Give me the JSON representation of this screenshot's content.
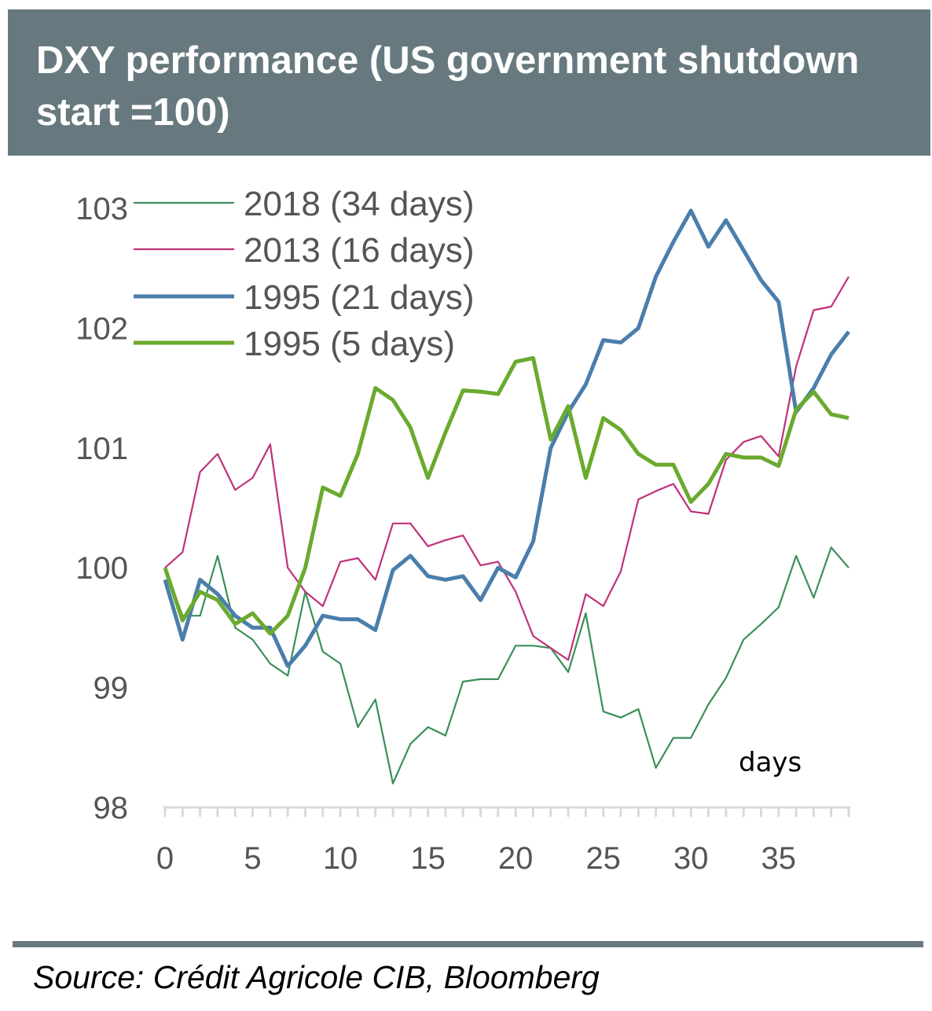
{
  "chart_data": {
    "type": "line",
    "title": "DXY performance (US government shutdown start =100)",
    "xlabel": "days",
    "ylabel": "",
    "xlim": [
      0,
      39
    ],
    "ylim": [
      98,
      103
    ],
    "xticks": [
      0,
      5,
      10,
      15,
      20,
      25,
      30,
      35
    ],
    "yticks": [
      98,
      99,
      100,
      101,
      102,
      103
    ],
    "grid": false,
    "legend_placement": "top-left",
    "x": [
      0,
      1,
      2,
      3,
      4,
      5,
      6,
      7,
      8,
      9,
      10,
      11,
      12,
      13,
      14,
      15,
      16,
      17,
      18,
      19,
      20,
      21,
      22,
      23,
      24,
      25,
      26,
      27,
      28,
      29,
      30,
      31,
      32,
      33,
      34,
      35,
      36,
      37,
      38,
      39
    ],
    "series": [
      {
        "name": "2018 (34 days)",
        "color": "#3a8f5a",
        "weight": "thin",
        "values": [
          100,
          99.6,
          99.6,
          100.1,
          99.5,
          99.4,
          99.2,
          99.1,
          99.8,
          99.3,
          99.2,
          98.67,
          98.9,
          98.2,
          98.53,
          98.67,
          98.6,
          99.05,
          99.07,
          99.07,
          99.35,
          99.35,
          99.33,
          99.13,
          99.62,
          98.8,
          98.75,
          98.82,
          98.33,
          98.58,
          98.58,
          98.86,
          99.08,
          99.4,
          99.53,
          99.67,
          100.1,
          99.75,
          100.17,
          100
        ]
      },
      {
        "name": "2013 (16 days)",
        "color": "#c0317a",
        "weight": "thin",
        "values": [
          100,
          100.13,
          100.8,
          100.95,
          100.65,
          100.75,
          101.03,
          100,
          99.8,
          99.68,
          100.05,
          100.08,
          99.9,
          100.37,
          100.37,
          100.18,
          100.23,
          100.27,
          100.02,
          100.05,
          99.8,
          99.43,
          99.33,
          99.23,
          99.78,
          99.68,
          99.97,
          100.57,
          100.64,
          100.7,
          100.47,
          100.45,
          100.9,
          101.05,
          101.1,
          100.93,
          101.68,
          102.15,
          102.18,
          102.43
        ]
      },
      {
        "name": "1995 (21 days)",
        "color": "#4a7eab",
        "weight": "thick",
        "values": [
          99.9,
          99.4,
          99.9,
          99.78,
          99.6,
          99.5,
          99.5,
          99.18,
          99.35,
          99.6,
          99.57,
          99.57,
          99.48,
          99.98,
          100.1,
          99.93,
          99.9,
          99.93,
          99.73,
          100,
          99.92,
          100.22,
          101,
          101.3,
          101.53,
          101.9,
          101.88,
          102,
          102.43,
          102.72,
          102.98,
          102.68,
          102.9,
          102.65,
          102.4,
          102.22,
          101.3,
          101.5,
          101.78,
          101.97
        ]
      },
      {
        "name": "1995 (5 days)",
        "color": "#6aaa2f",
        "weight": "thick",
        "values": [
          100,
          99.56,
          99.8,
          99.73,
          99.53,
          99.62,
          99.45,
          99.6,
          100,
          100.67,
          100.6,
          100.95,
          101.5,
          101.4,
          101.17,
          100.75,
          101.13,
          101.48,
          101.47,
          101.45,
          101.72,
          101.75,
          101.07,
          101.35,
          100.75,
          101.25,
          101.15,
          100.95,
          100.86,
          100.86,
          100.55,
          100.7,
          100.95,
          100.92,
          100.92,
          100.85,
          101.32,
          101.47,
          101.28,
          101.25
        ]
      }
    ],
    "source": "Source: Crédit Agricole CIB, Bloomberg",
    "axis_color": "#d9d9d9",
    "header_color": "#67797e"
  }
}
